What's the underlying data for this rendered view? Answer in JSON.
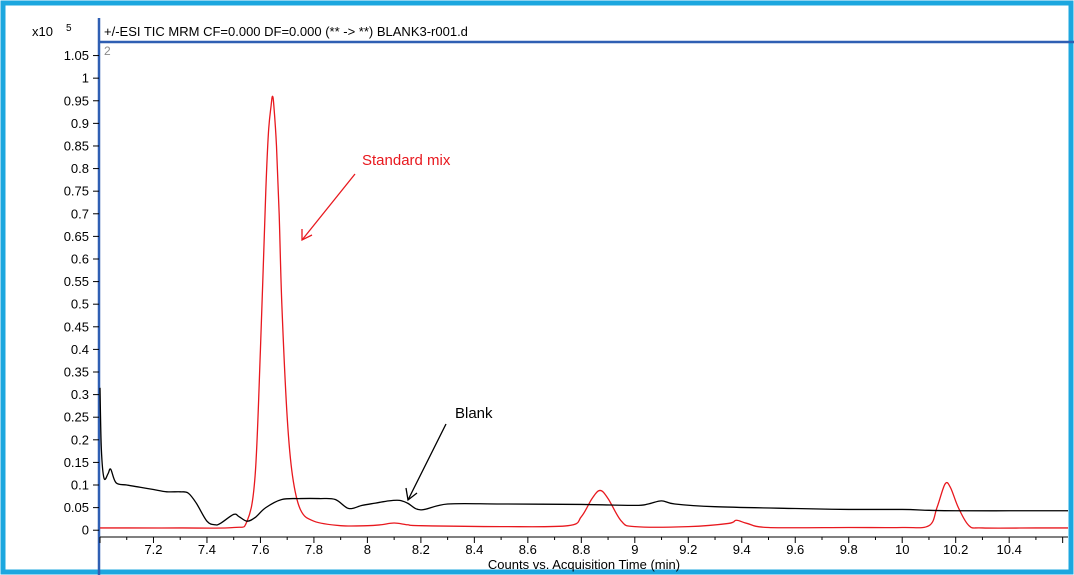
{
  "chart_data": {
    "type": "line",
    "title": "+/-ESI TIC MRM CF=0.000 DF=0.000 (** -> **) BLANK3-r001.d",
    "panel_number": "2",
    "y_multiplier": {
      "base": "x10",
      "exponent": "5"
    },
    "xlabel": "Counts vs. Acquisition Time (min)",
    "xlim": [
      7.0,
      10.62
    ],
    "ylim": [
      -0.015,
      1.08
    ],
    "x_ticks": [
      "7.2",
      "7.4",
      "7.6",
      "7.8",
      "8",
      "8.2",
      "8.4",
      "8.6",
      "8.8",
      "9",
      "9.2",
      "9.4",
      "9.6",
      "9.8",
      "10",
      "10.2",
      "10.4"
    ],
    "y_ticks": [
      "0",
      "0.05",
      "0.1",
      "0.15",
      "0.2",
      "0.25",
      "0.3",
      "0.35",
      "0.4",
      "0.45",
      "0.5",
      "0.55",
      "0.6",
      "0.65",
      "0.7",
      "0.75",
      "0.8",
      "0.85",
      "0.9",
      "0.95",
      "1",
      "1.05"
    ],
    "series": [
      {
        "color": "#e8181e",
        "x": [
          7.0,
          7.1,
          7.3,
          7.5,
          7.55,
          7.58,
          7.6,
          7.62,
          7.63,
          7.64,
          7.645,
          7.65,
          7.66,
          7.67,
          7.68,
          7.7,
          7.72,
          7.75,
          7.8,
          7.9,
          8.0,
          8.05,
          8.1,
          8.15,
          8.2,
          8.5,
          8.75,
          8.8,
          8.84,
          8.87,
          8.9,
          8.95,
          9.0,
          9.2,
          9.35,
          9.38,
          9.42,
          9.5,
          9.8,
          10.0,
          10.1,
          10.13,
          10.16,
          10.18,
          10.21,
          10.25,
          10.3,
          10.5,
          10.62
        ],
        "y": [
          0.005,
          0.005,
          0.005,
          0.006,
          0.02,
          0.12,
          0.4,
          0.75,
          0.88,
          0.94,
          0.96,
          0.94,
          0.85,
          0.7,
          0.5,
          0.25,
          0.12,
          0.045,
          0.02,
          0.01,
          0.01,
          0.012,
          0.016,
          0.012,
          0.01,
          0.008,
          0.01,
          0.03,
          0.07,
          0.088,
          0.07,
          0.02,
          0.008,
          0.008,
          0.015,
          0.022,
          0.015,
          0.006,
          0.006,
          0.006,
          0.01,
          0.05,
          0.102,
          0.095,
          0.05,
          0.01,
          0.005,
          0.005,
          0.005
        ]
      },
      {
        "color": "#000000",
        "x": [
          7.0,
          7.005,
          7.015,
          7.03,
          7.04,
          7.06,
          7.1,
          7.15,
          7.2,
          7.25,
          7.3,
          7.33,
          7.36,
          7.4,
          7.43,
          7.45,
          7.5,
          7.52,
          7.55,
          7.58,
          7.62,
          7.68,
          7.75,
          7.82,
          7.88,
          7.93,
          7.98,
          8.03,
          8.08,
          8.12,
          8.15,
          8.2,
          8.3,
          8.5,
          8.8,
          9.0,
          9.05,
          9.1,
          9.15,
          9.3,
          9.6,
          9.8,
          10.0,
          10.1,
          10.2,
          10.4,
          10.62
        ],
        "y": [
          0.315,
          0.18,
          0.115,
          0.125,
          0.135,
          0.105,
          0.1,
          0.095,
          0.09,
          0.085,
          0.085,
          0.082,
          0.06,
          0.02,
          0.012,
          0.015,
          0.035,
          0.03,
          0.02,
          0.028,
          0.05,
          0.068,
          0.07,
          0.07,
          0.068,
          0.048,
          0.055,
          0.06,
          0.065,
          0.066,
          0.06,
          0.045,
          0.058,
          0.058,
          0.057,
          0.055,
          0.058,
          0.065,
          0.058,
          0.052,
          0.048,
          0.046,
          0.046,
          0.044,
          0.043,
          0.043,
          0.043
        ]
      }
    ],
    "annotations": {
      "standard": {
        "text": "Standard mix",
        "color": "#e8181e"
      },
      "blank": {
        "text": "Blank",
        "color": "#000000"
      }
    }
  }
}
